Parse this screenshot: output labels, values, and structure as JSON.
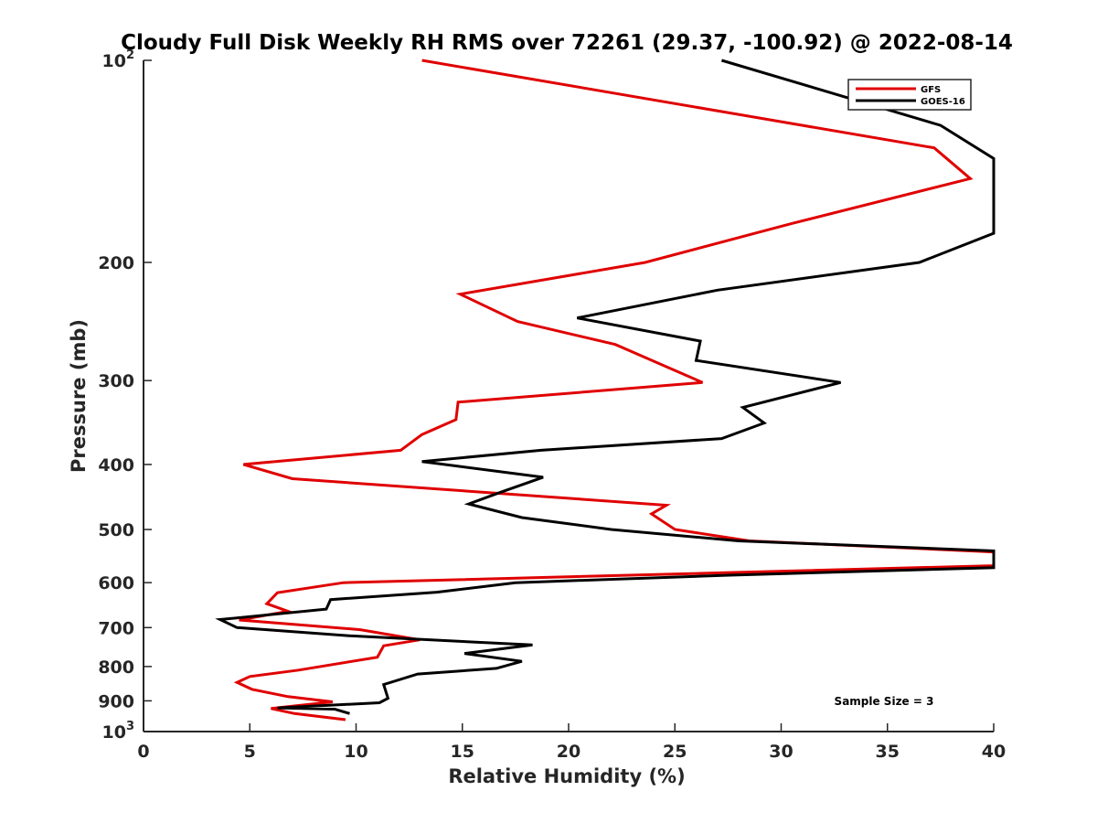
{
  "chart_data": {
    "type": "line",
    "title": "Cloudy Full Disk Weekly RH RMS over 72261 (29.37, -100.92) @ 2022-08-14",
    "xlabel": "Relative Humidity (%)",
    "ylabel": "Pressure (mb)",
    "xlim": [
      0,
      40
    ],
    "ylim": [
      100,
      1000
    ],
    "y_scale": "log",
    "y_reversed": true,
    "x_ticks": [
      "0",
      "5",
      "10",
      "15",
      "20",
      "25",
      "30",
      "35",
      "40"
    ],
    "y_ticks": [
      {
        "value": 100,
        "base": "10",
        "exp": "2"
      },
      {
        "value": 200,
        "label": "200"
      },
      {
        "value": 300,
        "label": "300"
      },
      {
        "value": 400,
        "label": "400"
      },
      {
        "value": 500,
        "label": "500"
      },
      {
        "value": 600,
        "label": "600"
      },
      {
        "value": 700,
        "label": "700"
      },
      {
        "value": 800,
        "label": "800"
      },
      {
        "value": 900,
        "label": "900"
      },
      {
        "value": 1000,
        "base": "10",
        "exp": "3"
      }
    ],
    "legend_position": "top-right",
    "annotation": "Sample Size = 3",
    "series": [
      {
        "name": "GFS",
        "color": "#e00000",
        "points": [
          [
            13.1,
            100
          ],
          [
            37.2,
            135
          ],
          [
            38.9,
            150
          ],
          [
            30.5,
            175
          ],
          [
            23.6,
            200
          ],
          [
            14.9,
            223
          ],
          [
            17.6,
            245
          ],
          [
            22.2,
            265
          ],
          [
            26.3,
            302
          ],
          [
            14.8,
            323
          ],
          [
            14.7,
            343
          ],
          [
            13.1,
            361
          ],
          [
            12.1,
            381
          ],
          [
            4.7,
            400
          ],
          [
            7.0,
            420
          ],
          [
            24.6,
            460
          ],
          [
            23.9,
            474
          ],
          [
            25.0,
            500
          ],
          [
            28.5,
            520
          ],
          [
            40.0,
            540
          ],
          [
            40.0,
            566
          ],
          [
            27.2,
            580
          ],
          [
            9.4,
            600
          ],
          [
            6.3,
            621
          ],
          [
            5.8,
            645
          ],
          [
            6.8,
            662
          ],
          [
            4.5,
            682
          ],
          [
            10.2,
            705
          ],
          [
            13.0,
            730
          ],
          [
            11.3,
            745
          ],
          [
            11.0,
            775
          ],
          [
            7.3,
            810
          ],
          [
            5.0,
            828
          ],
          [
            4.4,
            845
          ],
          [
            5.1,
            865
          ],
          [
            6.8,
            887
          ],
          [
            8.9,
            903
          ],
          [
            6.0,
            924
          ],
          [
            7.1,
            940
          ],
          [
            9.5,
            960
          ]
        ]
      },
      {
        "name": "GOES-16",
        "color": "#000000",
        "points": [
          [
            27.2,
            100
          ],
          [
            37.5,
            125
          ],
          [
            40.0,
            140
          ],
          [
            40.0,
            181
          ],
          [
            36.5,
            200
          ],
          [
            27.0,
            220
          ],
          [
            20.4,
            242
          ],
          [
            26.2,
            262
          ],
          [
            26.0,
            280
          ],
          [
            32.8,
            302
          ],
          [
            28.2,
            329
          ],
          [
            29.2,
            347
          ],
          [
            27.2,
            366
          ],
          [
            18.7,
            381
          ],
          [
            13.1,
            396
          ],
          [
            18.8,
            418
          ],
          [
            16.8,
            440
          ],
          [
            15.3,
            458
          ],
          [
            17.8,
            480
          ],
          [
            22.0,
            500
          ],
          [
            28.0,
            520
          ],
          [
            40.0,
            538
          ],
          [
            40.0,
            570
          ],
          [
            27.4,
            585
          ],
          [
            17.5,
            600
          ],
          [
            13.8,
            620
          ],
          [
            8.8,
            636
          ],
          [
            8.6,
            657
          ],
          [
            3.6,
            681
          ],
          [
            4.4,
            700
          ],
          [
            9.7,
            720
          ],
          [
            18.3,
            743
          ],
          [
            15.1,
            765
          ],
          [
            17.8,
            786
          ],
          [
            16.6,
            805
          ],
          [
            12.9,
            821
          ],
          [
            11.3,
            851
          ],
          [
            11.5,
            892
          ],
          [
            11.1,
            906
          ],
          [
            6.3,
            922
          ],
          [
            9.0,
            926
          ],
          [
            9.7,
            940
          ]
        ]
      }
    ]
  }
}
